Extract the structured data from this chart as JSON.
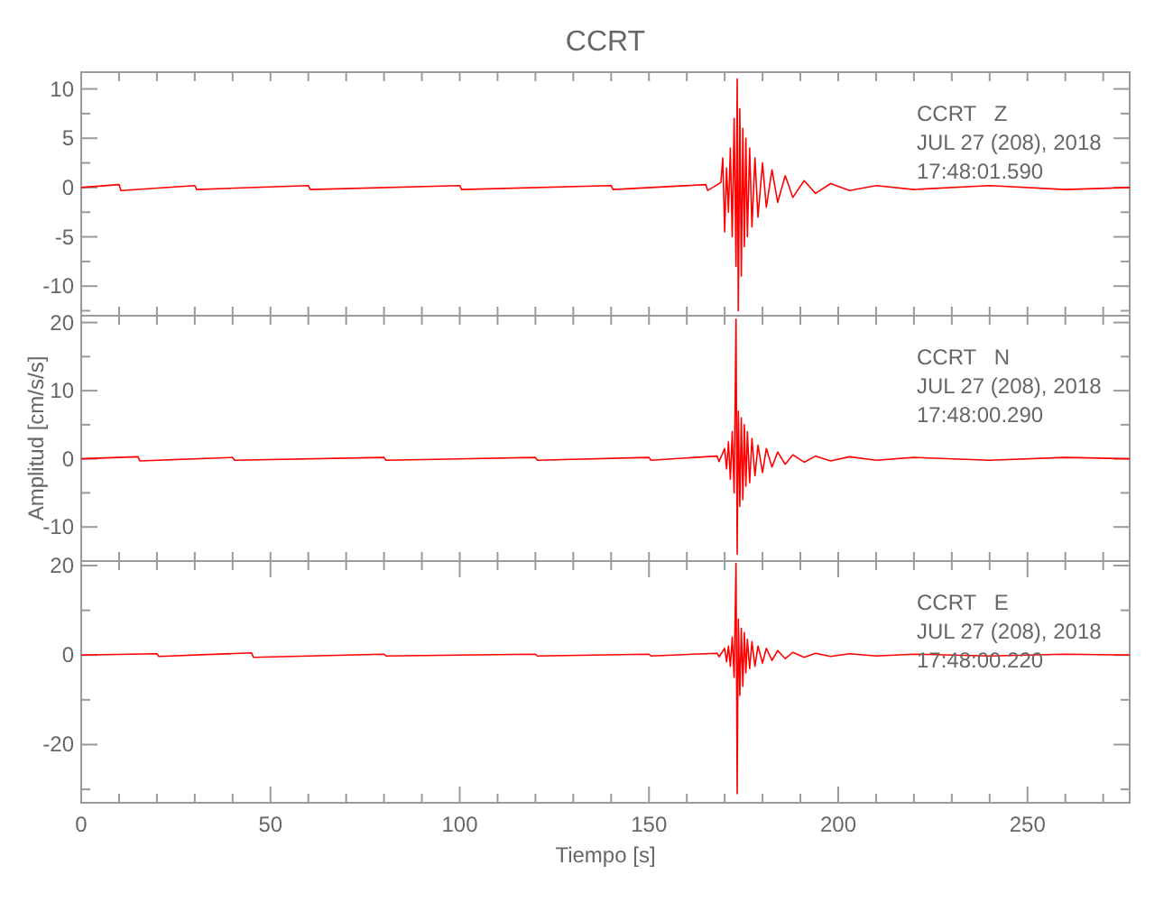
{
  "chart_data": [
    {
      "type": "line",
      "title": "CCRT",
      "tick_labels": "y",
      "grid": false,
      "xlim": [
        0,
        277
      ],
      "ylim": [
        -13,
        11.7
      ],
      "xticks": [
        {
          "value": 0,
          "label": null
        },
        {
          "value": 10,
          "label": null
        },
        {
          "value": 20,
          "label": null
        },
        {
          "value": 30,
          "label": null
        },
        {
          "value": 40,
          "label": null
        },
        {
          "value": 50,
          "label": null
        },
        {
          "value": 60,
          "label": null
        },
        {
          "value": 70,
          "label": null
        },
        {
          "value": 80,
          "label": null
        },
        {
          "value": 90,
          "label": null
        },
        {
          "value": 100,
          "label": null
        },
        {
          "value": 110,
          "label": null
        },
        {
          "value": 120,
          "label": null
        },
        {
          "value": 130,
          "label": null
        },
        {
          "value": 140,
          "label": null
        },
        {
          "value": 150,
          "label": null
        },
        {
          "value": 160,
          "label": null
        },
        {
          "value": 170,
          "label": null
        },
        {
          "value": 180,
          "label": null
        },
        {
          "value": 190,
          "label": null
        },
        {
          "value": 200,
          "label": null
        },
        {
          "value": 210,
          "label": null
        },
        {
          "value": 220,
          "label": null
        },
        {
          "value": 230,
          "label": null
        },
        {
          "value": 240,
          "label": null
        },
        {
          "value": 250,
          "label": null
        },
        {
          "value": 260,
          "label": null
        },
        {
          "value": 270,
          "label": null
        }
      ],
      "yticks": [
        -10,
        -5,
        0,
        5,
        10,
        {
          "value": -12.5,
          "label": null
        },
        {
          "value": -7.5,
          "label": null
        },
        {
          "value": -2.5,
          "label": null
        },
        {
          "value": 2.5,
          "label": null
        },
        {
          "value": 7.5,
          "label": null
        }
      ],
      "annotations": [
        "CCRT   Z",
        "JUL 27 (208), 2018",
        "17:48:01.590"
      ],
      "series": [
        {
          "color": "#ff0000",
          "x": [
            0,
            10,
            10.5,
            30,
            30.5,
            60,
            60.5,
            100,
            100.5,
            140,
            140.5,
            165,
            165.5,
            169,
            169.5,
            170,
            170.5,
            171,
            171.5,
            172,
            172.5,
            173,
            173.3,
            173.6,
            174,
            174.4,
            174.8,
            175.2,
            175.6,
            176,
            176.6,
            177.2,
            178,
            178.8,
            180,
            181,
            182.5,
            184,
            186,
            188,
            191,
            194,
            198,
            203,
            210,
            220,
            240,
            260,
            277
          ],
          "values": [
            0,
            0.3,
            -0.3,
            0.2,
            -0.2,
            0.2,
            -0.2,
            0.2,
            -0.2,
            0.2,
            -0.2,
            0.3,
            -0.3,
            0.5,
            3,
            -4.5,
            2,
            -2.5,
            4,
            -5,
            7,
            -8,
            11,
            -12.5,
            8,
            -9,
            6,
            -6,
            5,
            -5,
            4,
            -4,
            3,
            -3,
            2.5,
            -2,
            1.8,
            -1.5,
            1.2,
            -1,
            0.7,
            -0.6,
            0.4,
            -0.3,
            0.2,
            -0.2,
            0.2,
            -0.2,
            0
          ]
        }
      ]
    },
    {
      "type": "line",
      "ylabel": "Amplitud [cm/s/s]",
      "tick_labels": "y",
      "grid": false,
      "xlim": [
        0,
        277
      ],
      "ylim": [
        -15,
        21
      ],
      "xticks": [
        {
          "value": 0,
          "label": null
        },
        {
          "value": 10,
          "label": null
        },
        {
          "value": 20,
          "label": null
        },
        {
          "value": 30,
          "label": null
        },
        {
          "value": 40,
          "label": null
        },
        {
          "value": 50,
          "label": null
        },
        {
          "value": 60,
          "label": null
        },
        {
          "value": 70,
          "label": null
        },
        {
          "value": 80,
          "label": null
        },
        {
          "value": 90,
          "label": null
        },
        {
          "value": 100,
          "label": null
        },
        {
          "value": 110,
          "label": null
        },
        {
          "value": 120,
          "label": null
        },
        {
          "value": 130,
          "label": null
        },
        {
          "value": 140,
          "label": null
        },
        {
          "value": 150,
          "label": null
        },
        {
          "value": 160,
          "label": null
        },
        {
          "value": 170,
          "label": null
        },
        {
          "value": 180,
          "label": null
        },
        {
          "value": 190,
          "label": null
        },
        {
          "value": 200,
          "label": null
        },
        {
          "value": 210,
          "label": null
        },
        {
          "value": 220,
          "label": null
        },
        {
          "value": 230,
          "label": null
        },
        {
          "value": 240,
          "label": null
        },
        {
          "value": 250,
          "label": null
        },
        {
          "value": 260,
          "label": null
        },
        {
          "value": 270,
          "label": null
        }
      ],
      "yticks": [
        -10,
        0,
        10,
        20,
        {
          "value": -5,
          "label": null
        },
        {
          "value": 5,
          "label": null
        },
        {
          "value": 15,
          "label": null
        }
      ],
      "annotations": [
        "CCRT   N",
        "JUL 27 (208), 2018",
        "17:48:00.290"
      ],
      "series": [
        {
          "color": "#ff0000",
          "x": [
            0,
            15,
            15.5,
            40,
            40.5,
            80,
            80.5,
            120,
            120.5,
            150,
            150.5,
            168,
            168.5,
            170,
            170.5,
            171,
            171.5,
            172,
            172.5,
            173,
            173.3,
            173.6,
            174,
            174.4,
            174.8,
            175.2,
            175.6,
            176,
            176.6,
            177.2,
            178,
            178.8,
            180,
            181,
            182.5,
            184,
            186,
            188,
            191,
            194,
            198,
            203,
            210,
            220,
            240,
            260,
            277
          ],
          "values": [
            0,
            0.3,
            -0.3,
            0.2,
            -0.2,
            0.2,
            -0.2,
            0.2,
            -0.2,
            0.2,
            -0.2,
            0.4,
            -0.4,
            1.5,
            -1.5,
            2.5,
            -3,
            4,
            -5,
            20.5,
            -14,
            7,
            -7,
            6,
            -6,
            5,
            -4,
            4,
            -3.5,
            3,
            -2.5,
            2,
            -2,
            1.5,
            -1.2,
            1,
            -0.8,
            0.6,
            -0.5,
            0.4,
            -0.3,
            0.3,
            -0.2,
            0.2,
            -0.2,
            0.2,
            0
          ]
        }
      ]
    },
    {
      "type": "line",
      "xlabel": "Tiempo [s]",
      "grid": false,
      "xlim": [
        0,
        277
      ],
      "ylim": [
        -33,
        21
      ],
      "xticks": [
        0,
        50,
        100,
        150,
        200,
        250,
        {
          "value": 10,
          "label": null
        },
        {
          "value": 20,
          "label": null
        },
        {
          "value": 30,
          "label": null
        },
        {
          "value": 40,
          "label": null
        },
        {
          "value": 60,
          "label": null
        },
        {
          "value": 70,
          "label": null
        },
        {
          "value": 80,
          "label": null
        },
        {
          "value": 90,
          "label": null
        },
        {
          "value": 110,
          "label": null
        },
        {
          "value": 120,
          "label": null
        },
        {
          "value": 130,
          "label": null
        },
        {
          "value": 140,
          "label": null
        },
        {
          "value": 160,
          "label": null
        },
        {
          "value": 170,
          "label": null
        },
        {
          "value": 180,
          "label": null
        },
        {
          "value": 190,
          "label": null
        },
        {
          "value": 210,
          "label": null
        },
        {
          "value": 220,
          "label": null
        },
        {
          "value": 230,
          "label": null
        },
        {
          "value": 240,
          "label": null
        },
        {
          "value": 260,
          "label": null
        },
        {
          "value": 270,
          "label": null
        }
      ],
      "yticks": [
        -20,
        0,
        20,
        {
          "value": -30,
          "label": null
        },
        {
          "value": -10,
          "label": null
        },
        {
          "value": 10,
          "label": null
        }
      ],
      "annotations": [
        "CCRT   E",
        "JUL 27 (208), 2018",
        "17:48:00.220"
      ],
      "series": [
        {
          "color": "#ff0000",
          "x": [
            0,
            20,
            20.5,
            45,
            45.5,
            80,
            80.5,
            120,
            120.5,
            150,
            150.5,
            168,
            168.5,
            170,
            170.5,
            171,
            171.5,
            172,
            172.5,
            173,
            173.3,
            173.6,
            174,
            174.4,
            174.8,
            175.2,
            175.6,
            176,
            176.6,
            177.2,
            178,
            178.8,
            180,
            181,
            182.5,
            184,
            186,
            188,
            191,
            194,
            198,
            203,
            210,
            220,
            240,
            260,
            277
          ],
          "values": [
            0,
            0.3,
            -0.3,
            0.5,
            -0.5,
            0.2,
            -0.2,
            0.2,
            -0.2,
            0.2,
            -0.2,
            0.4,
            -0.4,
            1.5,
            -1.5,
            2,
            -2.5,
            4,
            -5,
            20.5,
            -31,
            8,
            -9,
            6,
            -7,
            5,
            -4,
            3.5,
            -3,
            3,
            -2.5,
            2,
            -1.8,
            1.5,
            -1.2,
            1,
            -0.8,
            0.6,
            -0.5,
            0.4,
            -0.3,
            0.3,
            -0.2,
            0.2,
            -0.2,
            0.2,
            0
          ]
        }
      ]
    }
  ]
}
